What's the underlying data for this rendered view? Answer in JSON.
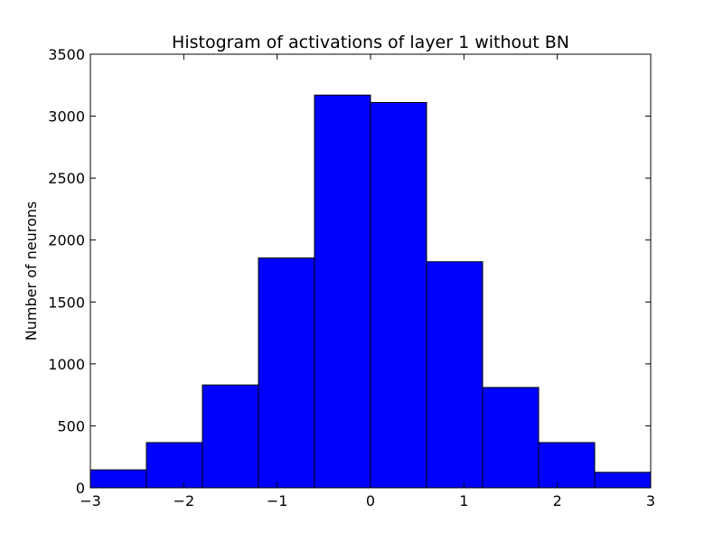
{
  "chart_data": {
    "type": "bar",
    "title": "Histogram of activations of layer 1  without BN",
    "xlabel": "",
    "ylabel": "Number of neurons",
    "xlim": [
      -3,
      3
    ],
    "ylim": [
      0,
      3500
    ],
    "x_ticks": [
      -3,
      -2,
      -1,
      0,
      1,
      2,
      3
    ],
    "x_tick_labels": [
      "−3",
      "−2",
      "−1",
      "0",
      "1",
      "2",
      "3"
    ],
    "y_ticks": [
      0,
      500,
      1000,
      1500,
      2000,
      2500,
      3000,
      3500
    ],
    "y_tick_labels": [
      "0",
      "500",
      "1000",
      "1500",
      "2000",
      "2500",
      "3000",
      "3500"
    ],
    "bin_edges": [
      -3.0,
      -2.4,
      -1.8,
      -1.2,
      -0.6,
      0.0,
      0.6,
      1.2,
      1.8,
      2.4,
      3.0
    ],
    "values": [
      145,
      365,
      830,
      1855,
      3170,
      3110,
      1825,
      810,
      365,
      125
    ],
    "bar_color": "#0000ff",
    "edge_color": "#000000",
    "grid": false
  }
}
